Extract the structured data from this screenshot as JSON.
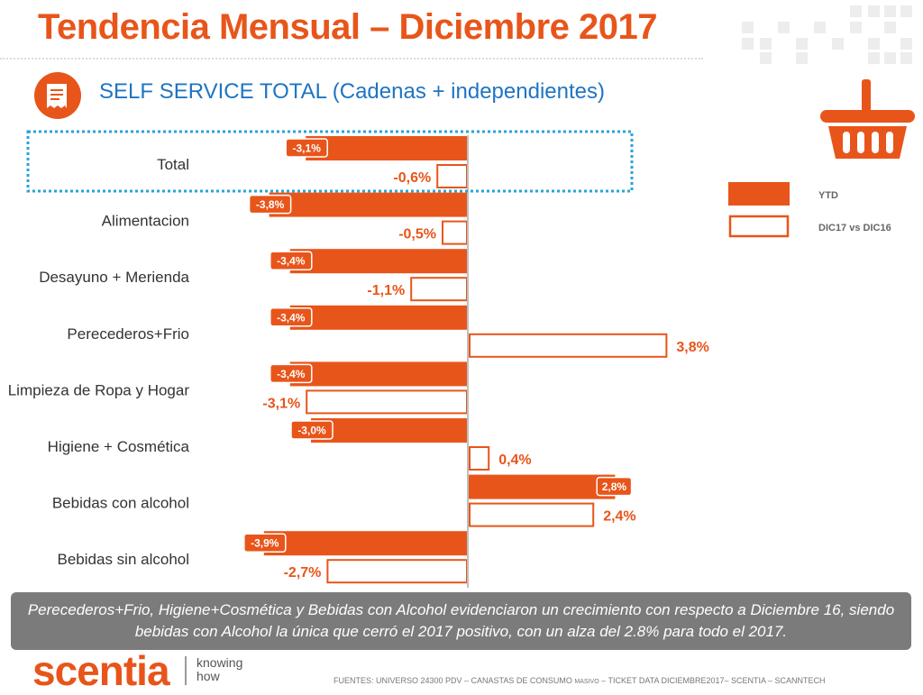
{
  "header": {
    "title": "Tendencia Mensual – Diciembre 2017",
    "subtitle": "SELF SERVICE TOTAL (Cadenas + independientes)"
  },
  "icons": [
    "receipt-icon",
    "shopping-basket-icon"
  ],
  "colors": {
    "accent": "#e8551a",
    "subtitle_blue": "#1f74c2",
    "highlight_border": "#2aa3d9",
    "footer_bg": "#7b7b7b"
  },
  "chart_data": {
    "type": "bar",
    "orientation": "horizontal",
    "categories": [
      "Total",
      "Alimentacion",
      "Desayuno + Merienda",
      "Perecederos+Frio",
      "Limpieza de Ropa y Hogar",
      "Higiene + Cosmética",
      "Bebidas con alcohol",
      "Bebidas sin alcohol"
    ],
    "series": [
      {
        "name": "YTD",
        "style": "filled",
        "values": [
          -3.1,
          -3.8,
          -3.4,
          -3.4,
          -3.4,
          -3.0,
          2.8,
          -3.9
        ],
        "labels": [
          "-3,1%",
          "-3,8%",
          "-3,4%",
          "-3,4%",
          "-3,4%",
          "-3,0%",
          "2,8%",
          "-3,9%"
        ]
      },
      {
        "name": "DIC17 vs DIC16",
        "style": "outline",
        "values": [
          -0.6,
          -0.5,
          -1.1,
          3.8,
          -3.1,
          0.4,
          2.4,
          -2.7
        ],
        "labels": [
          "-0,6%",
          "-0,5%",
          "-1,1%",
          "3,8%",
          "-3,1%",
          "0,4%",
          "2,4%",
          "-2,7%"
        ]
      }
    ],
    "xlim": [
      -4.0,
      4.0
    ],
    "highlighted_category": "Total",
    "legend_position": "right",
    "grid": false
  },
  "footer": {
    "summary": "Perecederos+Frio, Higiene+Cosmética  y Bebidas con Alcohol evidenciaron un crecimiento con respecto a Diciembre 16, siendo bebidas con Alcohol la  única que cerró el 2017 positivo, con un alza del 2.8% para todo el 2017.",
    "logo": "scentia",
    "tagline_line1": "knowing",
    "tagline_line2": "how",
    "source_pre": "FUENTES: UNIVERSO 24300 PDV – CANASTAS DE CONSUMO ",
    "source_small": "MASIVO",
    "source_post": " – TICKET DATA DICIEMBRE2017– SCENTIA – SCANNTECH"
  }
}
